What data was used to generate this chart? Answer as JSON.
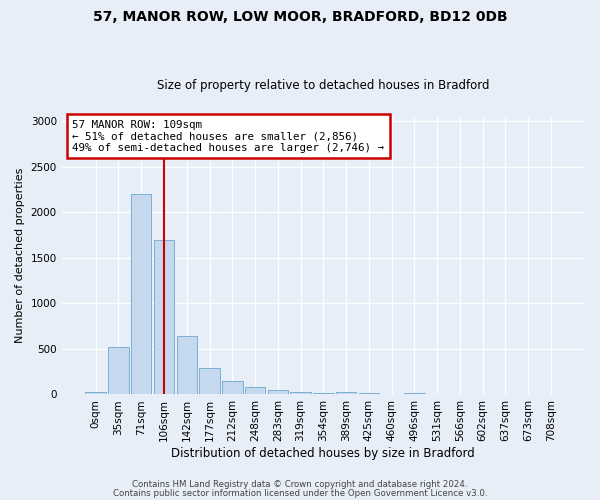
{
  "title1": "57, MANOR ROW, LOW MOOR, BRADFORD, BD12 0DB",
  "title2": "Size of property relative to detached houses in Bradford",
  "xlabel": "Distribution of detached houses by size in Bradford",
  "ylabel": "Number of detached properties",
  "categories": [
    "0sqm",
    "35sqm",
    "71sqm",
    "106sqm",
    "142sqm",
    "177sqm",
    "212sqm",
    "248sqm",
    "283sqm",
    "319sqm",
    "354sqm",
    "389sqm",
    "425sqm",
    "460sqm",
    "496sqm",
    "531sqm",
    "566sqm",
    "602sqm",
    "637sqm",
    "673sqm",
    "708sqm"
  ],
  "values": [
    30,
    520,
    2200,
    1700,
    640,
    290,
    145,
    85,
    50,
    30,
    20,
    25,
    15,
    10,
    20,
    5,
    5,
    5,
    5,
    0,
    0
  ],
  "bar_color": "#c5d8ed",
  "bar_edge_color": "#7aafd4",
  "vline_x_index": 3,
  "vline_color": "#cc0000",
  "annotation_title": "57 MANOR ROW: 109sqm",
  "annotation_line1": "← 51% of detached houses are smaller (2,856)",
  "annotation_line2": "49% of semi-detached houses are larger (2,746) →",
  "annotation_box_facecolor": "white",
  "annotation_box_edgecolor": "#cc0000",
  "ylim": [
    0,
    3050
  ],
  "yticks": [
    0,
    500,
    1000,
    1500,
    2000,
    2500,
    3000
  ],
  "footer1": "Contains HM Land Registry data © Crown copyright and database right 2024.",
  "footer2": "Contains public sector information licensed under the Open Government Licence v3.0.",
  "background_color": "#e8eef7",
  "plot_background_color": "#e8eef7",
  "title1_fontsize": 10,
  "title2_fontsize": 8.5,
  "ylabel_fontsize": 8,
  "xlabel_fontsize": 8.5,
  "tick_fontsize": 7.5,
  "footer_fontsize": 6.2
}
